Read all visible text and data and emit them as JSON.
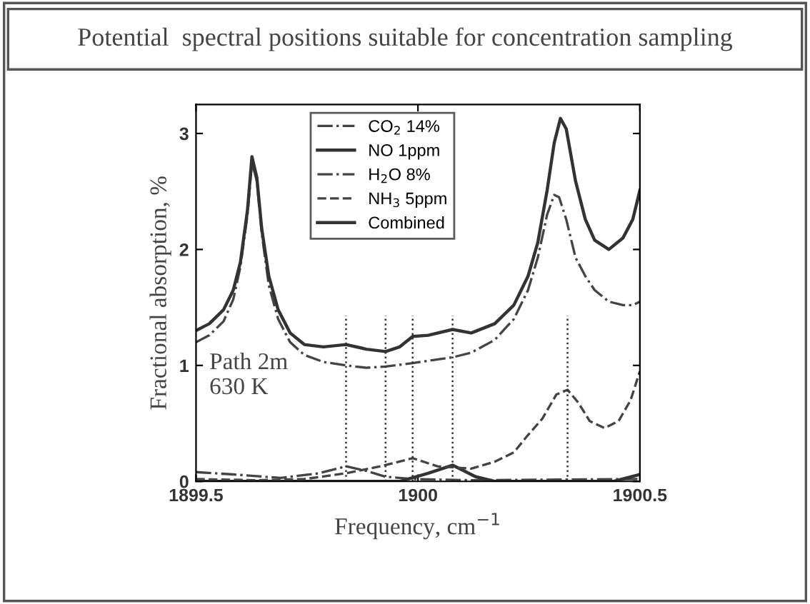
{
  "chart_data": {
    "type": "line",
    "title": "Potential  spectral positions suitable for concentration sampling",
    "xlabel": "Frequency, cm$^{−1}$",
    "ylabel": "Fractional absorption, %",
    "annotations": [
      "Path 2m\n630 K"
    ],
    "xlim": [
      1899.5,
      1900.5
    ],
    "xticks": [
      {
        "value": 1899.5,
        "label": "1899.5"
      },
      1900,
      {
        "value": 1900.5,
        "label": "1900.5"
      }
    ],
    "ylim": [
      0,
      3.25
    ],
    "yticks": [
      0,
      1,
      2,
      3
    ],
    "grid": false,
    "legend": "top",
    "marker": "none",
    "ref_lines": [
      {
        "axis": "x",
        "value": 1899.838,
        "label": null,
        "line_style": "dotted",
        "color": "#333333"
      },
      {
        "axis": "x",
        "value": 1899.927,
        "label": null,
        "line_style": "dotted",
        "color": "#333333"
      },
      {
        "axis": "x",
        "value": 1899.988,
        "label": null,
        "line_style": "dotted",
        "color": "#333333"
      },
      {
        "axis": "x",
        "value": 1900.078,
        "label": null,
        "line_style": "dotted",
        "color": "#333333"
      },
      {
        "axis": "x",
        "value": 1900.337,
        "label": null,
        "line_style": "dotted",
        "color": "#333333"
      }
    ],
    "series": [
      {
        "name": "CO$_{2}$ 14%",
        "color": "#444444",
        "line_style": "dashdot",
        "x": [
          1899.5,
          1899.584,
          1899.691,
          1899.777,
          1899.838,
          1899.884,
          1899.927,
          1899.988,
          1900.12,
          1900.5
        ],
        "values": [
          0.08,
          0.06,
          0.03,
          0.07,
          0.13,
          0.09,
          0.04,
          0.02,
          0.01,
          0.02
        ]
      },
      {
        "name": "NO 1ppm",
        "color": "#333333",
        "line_style": "solid",
        "x": [
          1899.5,
          1899.959,
          1900.023,
          1900.078,
          1900.13,
          1900.173,
          1900.441,
          1900.5
        ],
        "values": [
          0,
          0,
          0.07,
          0.14,
          0.04,
          0,
          0,
          0.06
        ]
      },
      {
        "name": "H$_{2}$O 8%",
        "color": "#444444",
        "line_style": "dashdot",
        "x": [
          1899.5,
          1899.53,
          1899.562,
          1899.584,
          1899.6,
          1899.616,
          1899.626,
          1899.637,
          1899.648,
          1899.664,
          1899.685,
          1899.712,
          1899.744,
          1899.787,
          1899.838,
          1899.884,
          1899.927,
          1899.988,
          1900.078,
          1900.12,
          1900.173,
          1900.216,
          1900.248,
          1900.27,
          1900.291,
          1900.307,
          1900.318,
          1900.334,
          1900.355,
          1900.377,
          1900.398,
          1900.43,
          1900.462,
          1900.484,
          1900.5
        ],
        "values": [
          1.2,
          1.26,
          1.38,
          1.57,
          1.85,
          2.3,
          2.75,
          2.59,
          2.14,
          1.69,
          1.4,
          1.2,
          1.09,
          1.03,
          1.0,
          0.98,
          0.99,
          1.02,
          1.07,
          1.11,
          1.22,
          1.4,
          1.65,
          1.93,
          2.3,
          2.47,
          2.45,
          2.26,
          1.93,
          1.77,
          1.65,
          1.55,
          1.52,
          1.52,
          1.55
        ]
      },
      {
        "name": "NH$_{3}$ 5ppm",
        "color": "#444444",
        "line_style": "dashed",
        "x": [
          1899.5,
          1899.637,
          1899.744,
          1899.838,
          1899.916,
          1899.988,
          1900.044,
          1900.12,
          1900.173,
          1900.216,
          1900.248,
          1900.28,
          1900.312,
          1900.337,
          1900.361,
          1900.387,
          1900.42,
          1900.452,
          1900.479,
          1900.5
        ],
        "values": [
          0.02,
          0.01,
          0.02,
          0.07,
          0.13,
          0.2,
          0.13,
          0.11,
          0.17,
          0.25,
          0.4,
          0.54,
          0.75,
          0.79,
          0.68,
          0.52,
          0.46,
          0.52,
          0.7,
          0.95
        ]
      },
      {
        "name": "Combined",
        "color": "#333333",
        "line_style": "solid",
        "x": [
          1899.5,
          1899.53,
          1899.562,
          1899.584,
          1899.6,
          1899.616,
          1899.626,
          1899.637,
          1899.648,
          1899.664,
          1899.685,
          1899.712,
          1899.744,
          1899.787,
          1899.838,
          1899.884,
          1899.927,
          1899.959,
          1899.988,
          1900.023,
          1900.078,
          1900.12,
          1900.173,
          1900.216,
          1900.248,
          1900.27,
          1900.291,
          1900.307,
          1900.321,
          1900.334,
          1900.355,
          1900.377,
          1900.398,
          1900.43,
          1900.462,
          1900.484,
          1900.5
        ],
        "values": [
          1.3,
          1.36,
          1.48,
          1.65,
          1.89,
          2.34,
          2.8,
          2.62,
          2.18,
          1.77,
          1.48,
          1.28,
          1.18,
          1.16,
          1.18,
          1.14,
          1.12,
          1.16,
          1.25,
          1.26,
          1.31,
          1.28,
          1.36,
          1.52,
          1.77,
          2.06,
          2.51,
          2.92,
          3.13,
          3.04,
          2.59,
          2.26,
          2.08,
          2.0,
          2.1,
          2.26,
          2.51
        ]
      }
    ]
  }
}
